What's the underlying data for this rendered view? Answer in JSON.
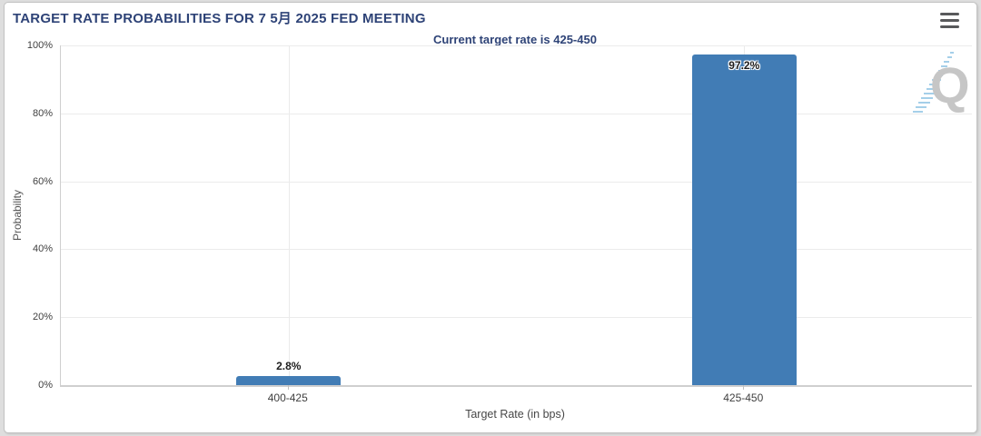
{
  "header": {
    "title": "TARGET RATE PROBABILITIES FOR 7 5月 2025 FED MEETING",
    "menu_icon": "hamburger-menu-icon"
  },
  "watermark": {
    "letter": "Q"
  },
  "chart_data": {
    "type": "bar",
    "title": "TARGET RATE PROBABILITIES FOR 7 5月 2025 FED MEETING",
    "subtitle": "Current target rate is 425-450",
    "categories": [
      "400-425",
      "425-450"
    ],
    "values": [
      2.8,
      97.2
    ],
    "value_labels": [
      "2.8%",
      "97.2%"
    ],
    "xlabel": "Target Rate (in bps)",
    "ylabel": "Probability",
    "ylim": [
      0,
      100
    ],
    "ytick_values": [
      0,
      20,
      40,
      60,
      80,
      100
    ],
    "ytick_labels": [
      "0%",
      "20%",
      "40%",
      "60%",
      "80%",
      "100%"
    ],
    "grid": true,
    "legend": "none",
    "colors": {
      "bar": "#417cb5",
      "title": "#2e4377",
      "grid": "#ebebeb",
      "axis": "#cfcfcf",
      "tick_text": "#3f3f3f"
    }
  }
}
